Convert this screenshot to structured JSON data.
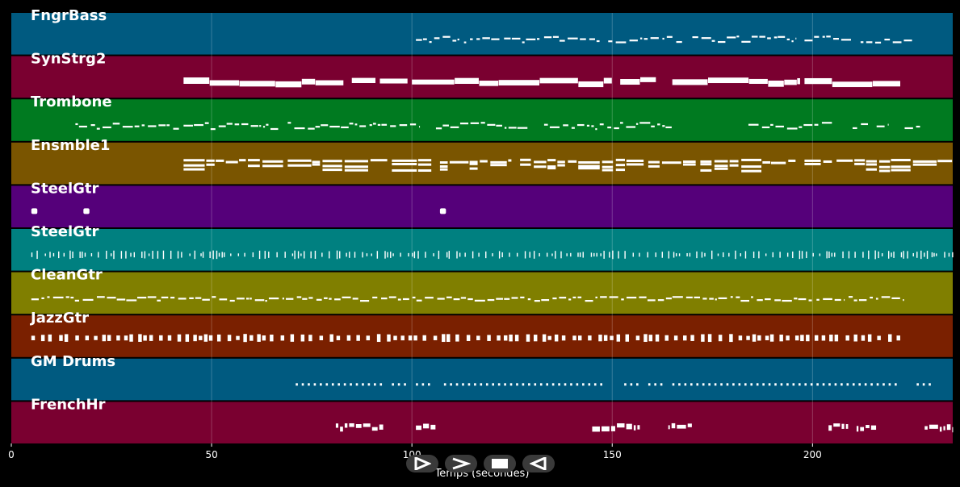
{
  "chart_data": {
    "type": "piano-roll",
    "xlabel": "Temps (secondes)",
    "xlim": [
      0,
      235
    ],
    "xticks": [
      0,
      50,
      100,
      150,
      200
    ],
    "grid": true,
    "note_color": "#ffffff",
    "tracks": [
      {
        "name": "FngrBass",
        "color": "#005a80",
        "start": 100,
        "end": 225,
        "segments": [
          [
            101,
            112
          ],
          [
            113,
            122
          ],
          [
            123,
            132
          ],
          [
            133,
            147
          ],
          [
            149,
            168
          ],
          [
            170,
            196
          ],
          [
            198,
            210
          ],
          [
            212,
            225
          ]
        ],
        "style": "thin-noisy"
      },
      {
        "name": "SynStrg2",
        "color": "#7a0030",
        "start": 43,
        "end": 223,
        "segments": [
          [
            43,
            83
          ],
          [
            85,
            91
          ],
          [
            92,
            99
          ],
          [
            100,
            150
          ],
          [
            152,
            161
          ],
          [
            165,
            197
          ],
          [
            198,
            222
          ]
        ],
        "style": "thick"
      },
      {
        "name": "Trombone",
        "color": "#007a20",
        "start": 16,
        "end": 227,
        "segments": [
          [
            16,
            42
          ],
          [
            43,
            67
          ],
          [
            69,
            102
          ],
          [
            106,
            129
          ],
          [
            133,
            165
          ],
          [
            184,
            205
          ],
          [
            210,
            214
          ],
          [
            216,
            219
          ],
          [
            223,
            227
          ]
        ],
        "style": "thin-noisy"
      },
      {
        "name": "Ensmble1",
        "color": "#7a5500",
        "start": 43,
        "end": 235,
        "segments": [
          [
            43,
            68
          ],
          [
            69,
            94
          ],
          [
            95,
            105
          ],
          [
            107,
            125
          ],
          [
            127,
            158
          ],
          [
            159,
            171
          ],
          [
            172,
            196
          ],
          [
            198,
            205
          ],
          [
            206,
            235
          ]
        ],
        "style": "chords"
      },
      {
        "name": "SteelGtr",
        "color": "#55007a",
        "start": 5,
        "end": 109,
        "segments": [
          [
            5,
            6.5
          ],
          [
            18,
            19.5
          ],
          [
            107,
            108.5
          ]
        ],
        "style": "blobs"
      },
      {
        "name": "SteelGtr",
        "color": "#008080",
        "start": 5,
        "end": 235,
        "segments": [
          [
            5,
            235
          ]
        ],
        "style": "strum"
      },
      {
        "name": "CleanGtr",
        "color": "#807f00",
        "start": 5,
        "end": 223,
        "segments": [
          [
            5,
            200
          ],
          [
            201,
            208
          ],
          [
            209,
            223
          ]
        ],
        "style": "melody"
      },
      {
        "name": "JazzGtr",
        "color": "#7a2000",
        "start": 5,
        "end": 222,
        "segments": [
          [
            5,
            222
          ]
        ],
        "style": "blocks"
      },
      {
        "name": "GM Drums",
        "color": "#005a80",
        "start": 71,
        "end": 231,
        "segments": [
          [
            71,
            93
          ],
          [
            95,
            99
          ],
          [
            101,
            106
          ],
          [
            108,
            148
          ],
          [
            153,
            157
          ],
          [
            159,
            163
          ],
          [
            165,
            222
          ],
          [
            226,
            231
          ]
        ],
        "style": "dots"
      },
      {
        "name": "FrenchHr",
        "color": "#7a0030",
        "start": 81,
        "end": 235,
        "segments": [
          [
            81,
            93
          ],
          [
            101,
            106
          ],
          [
            145,
            157
          ],
          [
            164,
            170
          ],
          [
            204,
            209
          ],
          [
            211,
            216
          ],
          [
            228,
            235
          ]
        ],
        "style": "phrase"
      }
    ]
  },
  "controls": [
    {
      "name": "play-button",
      "icon": "play-icon"
    },
    {
      "name": "forward-button",
      "icon": "fast-forward-icon"
    },
    {
      "name": "stop-button",
      "icon": "stop-icon"
    },
    {
      "name": "rewind-button",
      "icon": "rewind-icon"
    }
  ]
}
